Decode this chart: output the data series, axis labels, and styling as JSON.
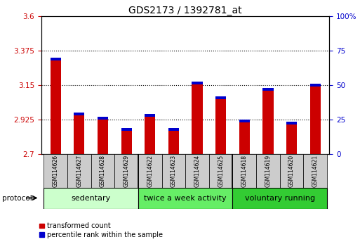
{
  "title": "GDS2173 / 1392781_at",
  "samples": [
    "GSM114626",
    "GSM114627",
    "GSM114628",
    "GSM114629",
    "GSM114622",
    "GSM114623",
    "GSM114624",
    "GSM114625",
    "GSM114618",
    "GSM114619",
    "GSM114620",
    "GSM114621"
  ],
  "red_values": [
    3.31,
    2.955,
    2.925,
    2.855,
    2.945,
    2.855,
    3.155,
    3.06,
    2.91,
    3.115,
    2.895,
    3.14
  ],
  "blue_heights": [
    0.018,
    0.018,
    0.018,
    0.018,
    0.018,
    0.018,
    0.018,
    0.018,
    0.018,
    0.018,
    0.018,
    0.018
  ],
  "base": 2.7,
  "ylim_left": [
    2.7,
    3.6
  ],
  "ylim_right": [
    0,
    100
  ],
  "yticks_left": [
    2.7,
    2.925,
    3.15,
    3.375,
    3.6
  ],
  "yticks_right": [
    0,
    25,
    50,
    75,
    100
  ],
  "ytick_labels_left": [
    "2.7",
    "2.925",
    "3.15",
    "3.375",
    "3.6"
  ],
  "ytick_labels_right": [
    "0",
    "25",
    "50",
    "75",
    "100%"
  ],
  "hlines": [
    2.925,
    3.15,
    3.375
  ],
  "groups": [
    {
      "label": "sedentary",
      "span": [
        0,
        3
      ],
      "color": "#ccffcc"
    },
    {
      "label": "twice a week activity",
      "span": [
        4,
        7
      ],
      "color": "#66ee66"
    },
    {
      "label": "voluntary running",
      "span": [
        8,
        11
      ],
      "color": "#33cc33"
    }
  ],
  "protocol_label": "protocol",
  "bar_width": 0.45,
  "red_color": "#cc0000",
  "blue_color": "#0000cc",
  "tick_label_color_left": "#cc0000",
  "tick_label_color_right": "#0000cc",
  "legend_red": "transformed count",
  "legend_blue": "percentile rank within the sample",
  "title_fontsize": 10,
  "tick_fontsize": 7.5,
  "sample_fontsize": 5.5,
  "group_fontsize": 8
}
